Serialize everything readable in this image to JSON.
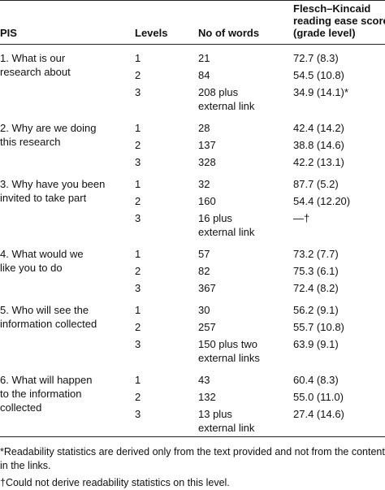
{
  "header": {
    "pis": "PIS",
    "levels": "Levels",
    "words": "No of words",
    "score": [
      "Flesch–Kincaid",
      "reading ease score",
      "(grade level)"
    ]
  },
  "sections": [
    {
      "pis": [
        "1. What is our",
        "research about"
      ],
      "rows": [
        {
          "level": "1",
          "words": [
            "21"
          ],
          "score": "72.7 (8.3)"
        },
        {
          "level": "2",
          "words": [
            "84"
          ],
          "score": "54.5 (10.8)"
        },
        {
          "level": "3",
          "words": [
            "208 plus",
            "external link"
          ],
          "score": "34.9 (14.1)*"
        }
      ]
    },
    {
      "pis": [
        "2. Why are we doing",
        "this research"
      ],
      "rows": [
        {
          "level": "1",
          "words": [
            "28"
          ],
          "score": "42.4 (14.2)"
        },
        {
          "level": "2",
          "words": [
            "137"
          ],
          "score": "38.8 (14.6)"
        },
        {
          "level": "3",
          "words": [
            "328"
          ],
          "score": "42.2 (13.1)"
        }
      ]
    },
    {
      "pis": [
        "3. Why have you been",
        "invited to take part"
      ],
      "rows": [
        {
          "level": "1",
          "words": [
            "32"
          ],
          "score": "87.7 (5.2)"
        },
        {
          "level": "2",
          "words": [
            "160"
          ],
          "score": "54.4 (12.20)"
        },
        {
          "level": "3",
          "words": [
            "16 plus",
            "external link"
          ],
          "score": "—†"
        }
      ]
    },
    {
      "pis": [
        "4. What would we",
        "like you to do"
      ],
      "rows": [
        {
          "level": "1",
          "words": [
            "57"
          ],
          "score": "73.2 (7.7)"
        },
        {
          "level": "2",
          "words": [
            "82"
          ],
          "score": "75.3 (6.1)"
        },
        {
          "level": "3",
          "words": [
            "367"
          ],
          "score": "72.4 (8.2)"
        }
      ]
    },
    {
      "pis": [
        "5. Who will see the",
        "information collected"
      ],
      "rows": [
        {
          "level": "1",
          "words": [
            "30"
          ],
          "score": "56.2 (9.1)"
        },
        {
          "level": "2",
          "words": [
            "257"
          ],
          "score": "55.7 (10.8)"
        },
        {
          "level": "3",
          "words": [
            "150 plus two",
            "external links"
          ],
          "score": "63.9 (9.1)"
        }
      ]
    },
    {
      "pis": [
        "6. What will happen",
        "to the information",
        "collected"
      ],
      "rows": [
        {
          "level": "1",
          "words": [
            "43"
          ],
          "score": "60.4 (8.3)"
        },
        {
          "level": "2",
          "words": [
            "132"
          ],
          "score": "55.0 (11.0)"
        },
        {
          "level": "3",
          "words": [
            "13 plus",
            "external link"
          ],
          "score": "27.4 (14.6)"
        }
      ]
    }
  ],
  "footnotes": [
    "*Readability statistics are derived only from the text provided and not from the content in the links.",
    "†Could not derive readability statistics on this level."
  ]
}
